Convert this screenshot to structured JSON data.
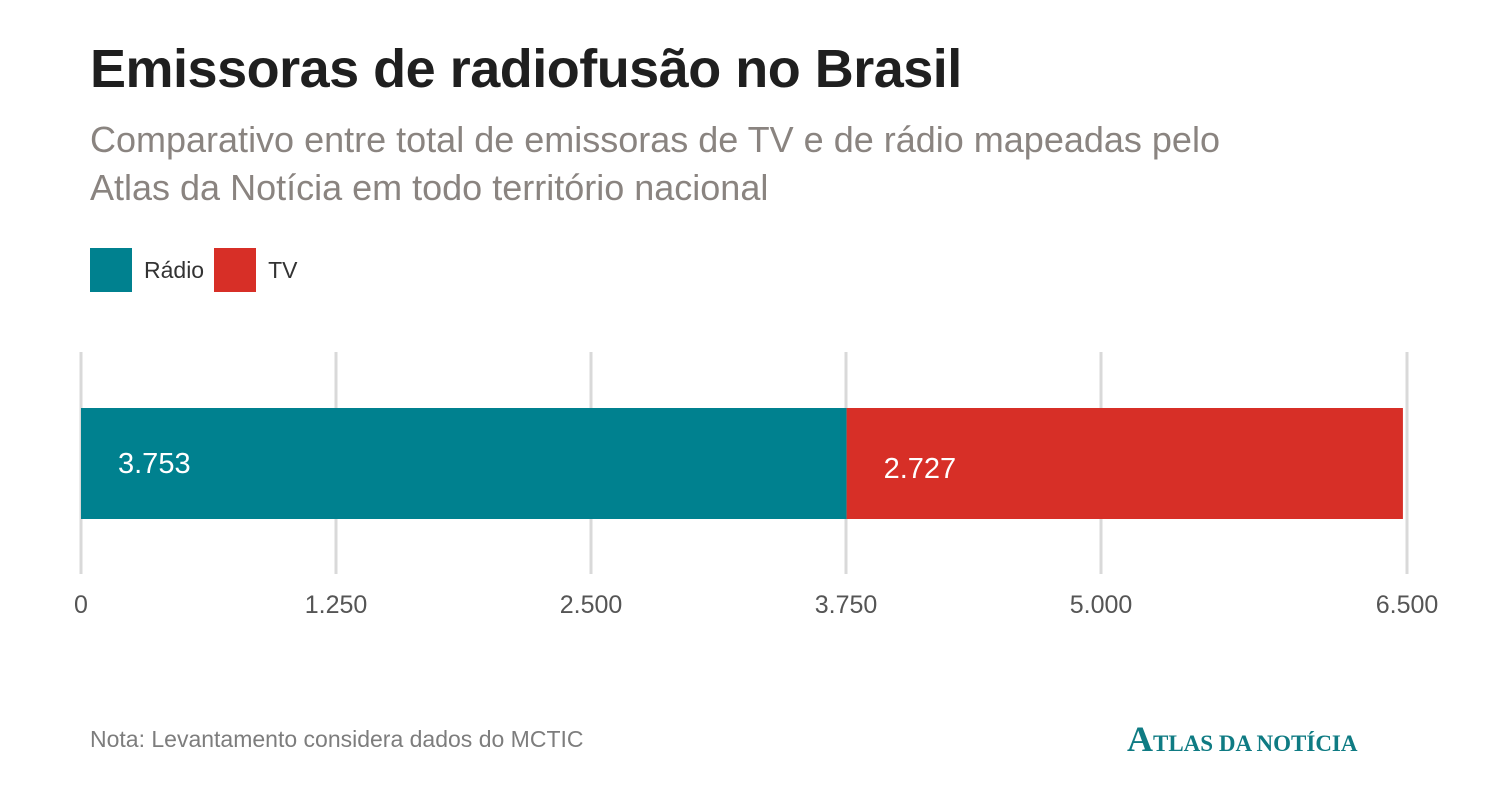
{
  "header": {
    "title": "Emissoras de radiofusão no Brasil",
    "subtitle": "Comparativo entre total de emissoras de TV e de rádio mapeadas pelo Atlas da Notícia em todo território nacional"
  },
  "legend": {
    "items": [
      {
        "label": "Rádio",
        "color": "#00818f"
      },
      {
        "label": "TV",
        "color": "#d72f27"
      }
    ]
  },
  "chart_data": {
    "type": "bar",
    "orientation": "horizontal",
    "stacked": true,
    "categories": [
      ""
    ],
    "series": [
      {
        "name": "Rádio",
        "values": [
          3753
        ],
        "label": "3.753",
        "color": "#00818f"
      },
      {
        "name": "TV",
        "values": [
          2727
        ],
        "label": "2.727",
        "color": "#d72f27"
      }
    ],
    "xlim": [
      0,
      6500
    ],
    "ticks": [
      0,
      1250,
      2500,
      3750,
      5000,
      6500
    ],
    "tick_labels": [
      "0",
      "1.250",
      "2.500",
      "3.750",
      "5.000",
      "6.500"
    ],
    "grid": true,
    "legend_position": "top-left"
  },
  "footer": {
    "note": "Nota: Levantamento considera dados do MCTIC",
    "logo_initial": "A",
    "logo_rest": "TLAS DA NOTÍCIA"
  }
}
